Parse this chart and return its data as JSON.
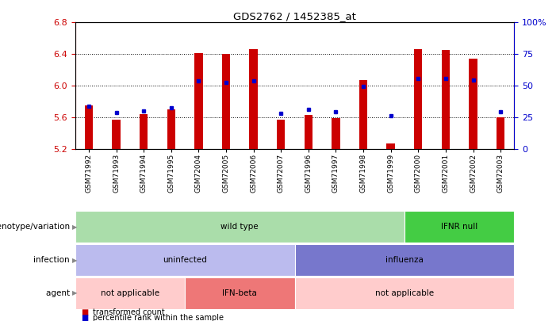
{
  "title": "GDS2762 / 1452385_at",
  "samples": [
    "GSM71992",
    "GSM71993",
    "GSM71994",
    "GSM71995",
    "GSM72004",
    "GSM72005",
    "GSM72006",
    "GSM72007",
    "GSM71996",
    "GSM71997",
    "GSM71998",
    "GSM71999",
    "GSM72000",
    "GSM72001",
    "GSM72002",
    "GSM72003"
  ],
  "bar_values": [
    5.75,
    5.57,
    5.64,
    5.7,
    6.41,
    6.4,
    6.46,
    5.57,
    5.63,
    5.59,
    6.07,
    5.27,
    6.46,
    6.45,
    6.34,
    5.6
  ],
  "bar_base": 5.2,
  "percentile_values": [
    5.74,
    5.66,
    5.68,
    5.72,
    6.06,
    6.04,
    6.06,
    5.65,
    5.7,
    5.67,
    5.99,
    5.62,
    6.09,
    6.09,
    6.07,
    5.67
  ],
  "ylim": [
    5.2,
    6.8
  ],
  "yticks": [
    5.2,
    5.6,
    6.0,
    6.4,
    6.8
  ],
  "y2ticks": [
    0,
    25,
    50,
    75,
    100
  ],
  "y2tick_labels": [
    "0",
    "25",
    "50",
    "75",
    "100%"
  ],
  "bar_color": "#cc0000",
  "percentile_color": "#0000cc",
  "bg_color": "#ffffff",
  "genotype_groups": [
    {
      "label": "wild type",
      "start": 0,
      "end": 12,
      "color": "#aaddaa"
    },
    {
      "label": "IFNR null",
      "start": 12,
      "end": 16,
      "color": "#44cc44"
    }
  ],
  "infection_groups": [
    {
      "label": "uninfected",
      "start": 0,
      "end": 8,
      "color": "#bbbbee"
    },
    {
      "label": "influenza",
      "start": 8,
      "end": 16,
      "color": "#7777cc"
    }
  ],
  "agent_groups": [
    {
      "label": "not applicable",
      "start": 0,
      "end": 4,
      "color": "#ffcccc"
    },
    {
      "label": "IFN-beta",
      "start": 4,
      "end": 8,
      "color": "#ee7777"
    },
    {
      "label": "not applicable",
      "start": 8,
      "end": 16,
      "color": "#ffcccc"
    }
  ],
  "row_labels": [
    "genotype/variation",
    "infection",
    "agent"
  ],
  "legend_items": [
    {
      "color": "#cc0000",
      "label": "transformed count"
    },
    {
      "color": "#0000cc",
      "label": "percentile rank within the sample"
    }
  ]
}
